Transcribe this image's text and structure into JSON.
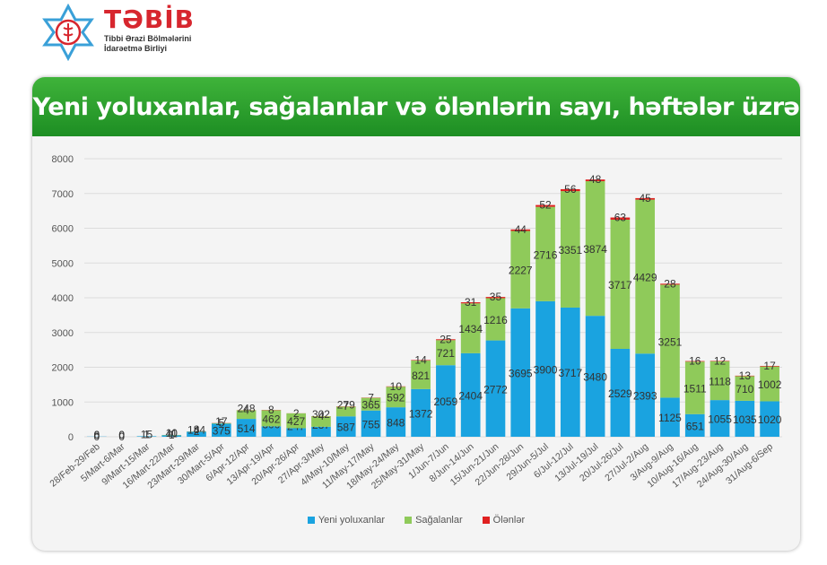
{
  "logo": {
    "name": "TƏBİB",
    "subtitle_line1": "Tibbi Ərazi Bölmələrini",
    "subtitle_line2": "İdarəetmə Birliyi"
  },
  "chart_data": {
    "type": "bar",
    "stacked": true,
    "title": "Yeni yoluxanlar, sağalanlar və ölənlərin sayı, həftələr üzrə",
    "xlabel": "",
    "ylabel": "",
    "ylim": [
      0,
      8000
    ],
    "yticks": [
      0,
      1000,
      2000,
      3000,
      4000,
      5000,
      6000,
      7000,
      8000
    ],
    "grid": true,
    "legend_position": "bottom",
    "categories": [
      "28/Feb-29/Feb",
      "5/Mart-6/Mar",
      "9/Mart-15/Mar",
      "16/Mart-22/Mar",
      "23/Mart-29/Mar",
      "30/Mart-5/Apr",
      "6/Apr-12/Apr",
      "13/Apr-19/Apr",
      "20/Apr-26/Apr",
      "27/Apr-3/May",
      "4/May-10/May",
      "11/May-17/May",
      "18/May-24/May",
      "25/May-31/May",
      "1/Jun-7/Jun",
      "8/Jun-14/Jun",
      "15/Jun-21/Jun",
      "22/Jun-28/Jun",
      "29/Jun-5/Jul",
      "6/Jul-12/Jul",
      "13/Jul-19/Jul",
      "20/Jul-26/Jul",
      "27/Jul-2/Aug",
      "3/Aug-9/Aug",
      "10/Aug-16/Aug",
      "17/Aug-23/Aug",
      "24/Aug-30/Aug",
      "31/Aug-6/Sep"
    ],
    "series": [
      {
        "name": "Yeni yoluxanlar",
        "color": "#1aa3e0",
        "values": [
          6,
          0,
          15,
          41,
          144,
          375,
          514,
          300,
          247,
          287,
          587,
          755,
          848,
          1372,
          2059,
          2404,
          2772,
          3695,
          3900,
          3717,
          3480,
          2529,
          2393,
          1125,
          651,
          1055,
          1035,
          1020
        ],
        "labels": [
          "6",
          "0",
          "15",
          "41",
          "144",
          "375",
          "514",
          "300",
          "247",
          "287",
          "587",
          "755",
          "848",
          "1372",
          "2059",
          "2404",
          "2772",
          "3695",
          "3900",
          "3717",
          "3480",
          "2529",
          "2393",
          "1125",
          "651",
          "1055",
          "1035",
          "1020"
        ]
      },
      {
        "name": "Sağalanlar",
        "color": "#8fca5a",
        "values": [
          0,
          0,
          1,
          10,
          8,
          17,
          248,
          462,
          427,
          302,
          279,
          365,
          592,
          821,
          721,
          1434,
          1216,
          2227,
          2716,
          3351,
          3874,
          3717,
          4429,
          3251,
          1511,
          1118,
          710,
          1002
        ],
        "labels": [
          "0",
          "0",
          "1",
          "10",
          "8",
          "17",
          "248",
          "462",
          "427",
          "302",
          "279",
          "365",
          "592",
          "821",
          "721",
          "1434",
          "1216",
          "2227",
          "2716",
          "3351",
          "3874",
          "3717",
          "4429",
          "3251",
          "1511",
          "1118",
          "710",
          "1002"
        ]
      },
      {
        "name": "Ölənlər",
        "color": "#e02020",
        "values": [
          0,
          0,
          0,
          1,
          2,
          5,
          4,
          8,
          2,
          4,
          7,
          7,
          10,
          14,
          25,
          31,
          35,
          44,
          52,
          56,
          48,
          63,
          45,
          28,
          16,
          12,
          13,
          17
        ],
        "labels": [
          "0",
          "0",
          "",
          "1",
          "2",
          "5",
          "4",
          "8",
          "2",
          "4",
          "7",
          "7",
          "10",
          "14",
          "25",
          "31",
          "35",
          "44",
          "52",
          "56",
          "48",
          "63",
          "45",
          "28",
          "16",
          "12",
          "13",
          "17"
        ]
      }
    ]
  }
}
